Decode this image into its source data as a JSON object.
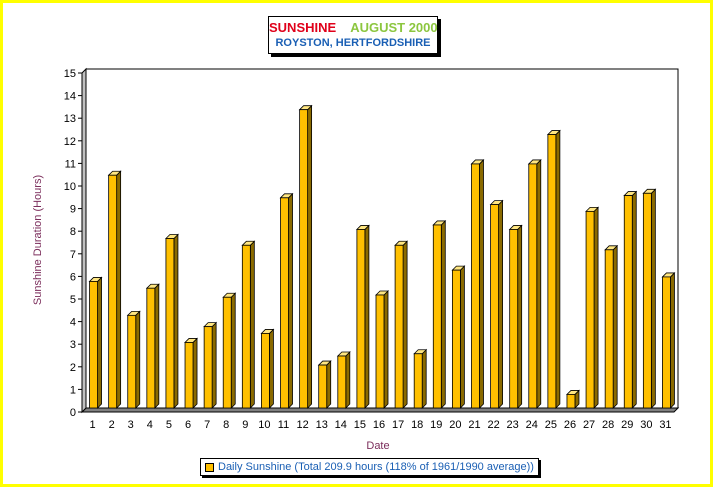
{
  "chart_data": {
    "type": "bar",
    "title_part1": "SUNSHINE",
    "title_part2": "AUGUST 2000",
    "subtitle": "ROYSTON, HERTFORDSHIRE",
    "xlabel": "Date",
    "ylabel": "Sunshine Duration (Hours)",
    "ylim": [
      0,
      15
    ],
    "yticks": [
      0,
      1,
      2,
      3,
      4,
      5,
      6,
      7,
      8,
      9,
      10,
      11,
      12,
      13,
      14,
      15
    ],
    "grid": true,
    "legend_position": "bottom",
    "categories": [
      "1",
      "2",
      "3",
      "4",
      "5",
      "6",
      "7",
      "8",
      "9",
      "10",
      "11",
      "12",
      "13",
      "14",
      "15",
      "16",
      "17",
      "18",
      "19",
      "20",
      "21",
      "22",
      "23",
      "24",
      "25",
      "26",
      "27",
      "28",
      "29",
      "30",
      "31"
    ],
    "series": [
      {
        "name": "Daily Sunshine (Total 209.9 hours (118% of 1961/1990 average))",
        "color": "#ffc000",
        "values": [
          5.6,
          10.3,
          4.1,
          5.3,
          7.5,
          2.9,
          3.6,
          4.9,
          7.2,
          3.3,
          9.3,
          13.2,
          1.9,
          2.3,
          7.9,
          5.0,
          7.2,
          2.4,
          8.1,
          6.1,
          10.8,
          9.0,
          7.9,
          10.8,
          12.1,
          0.6,
          8.7,
          7.0,
          9.4,
          9.5,
          5.8
        ]
      }
    ]
  },
  "colors": {
    "frame_border": "#ffff00",
    "bar_fill": "#ffc000",
    "title_red": "#e0001a",
    "title_green": "#8cc63f",
    "subtitle_blue": "#1a5fb4",
    "axis_label": "#7b2d5b"
  }
}
